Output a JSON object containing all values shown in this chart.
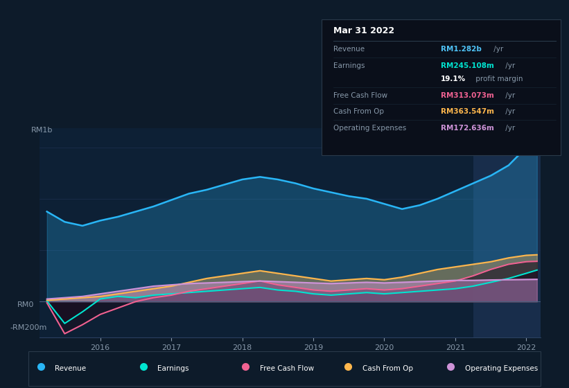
{
  "bg_color": "#0d1b2a",
  "chart_bg": "#0d2035",
  "title_date": "Mar 31 2022",
  "ylabel_top": "RM1b",
  "ylabel_zero": "RM0",
  "ylabel_neg": "-RM200m",
  "xlabel_ticks": [
    "2016",
    "2017",
    "2018",
    "2019",
    "2020",
    "2021",
    "2022"
  ],
  "ylim": [
    -280000000,
    1350000000
  ],
  "colors": {
    "revenue": "#29b6f6",
    "earnings": "#00e5d1",
    "free_cash_flow": "#f06292",
    "cash_from_op": "#ffb74d",
    "op_expenses": "#ce93d8"
  },
  "legend": [
    {
      "label": "Revenue",
      "color": "#29b6f6"
    },
    {
      "label": "Earnings",
      "color": "#00e5d1"
    },
    {
      "label": "Free Cash Flow",
      "color": "#f06292"
    },
    {
      "label": "Cash From Op",
      "color": "#ffb74d"
    },
    {
      "label": "Operating Expenses",
      "color": "#ce93d8"
    }
  ],
  "tooltip_rows": [
    {
      "label": "Revenue",
      "value": "RM1.282b",
      "unit": " /yr",
      "val_color": "#4fc3f7",
      "has_separator": true
    },
    {
      "label": "Earnings",
      "value": "RM245.108m",
      "unit": " /yr",
      "val_color": "#00e5d1",
      "has_separator": true
    },
    {
      "label": "",
      "value": "19.1%",
      "unit": " profit margin",
      "val_color": "white",
      "has_separator": false
    },
    {
      "label": "Free Cash Flow",
      "value": "RM313.073m",
      "unit": " /yr",
      "val_color": "#f06292",
      "has_separator": true
    },
    {
      "label": "Cash From Op",
      "value": "RM363.547m",
      "unit": " /yr",
      "val_color": "#ffb74d",
      "has_separator": true
    },
    {
      "label": "Operating Expenses",
      "value": "RM172.636m",
      "unit": " /yr",
      "val_color": "#ce93d8",
      "has_separator": true
    }
  ],
  "x": [
    2015.25,
    2015.5,
    2015.75,
    2016.0,
    2016.25,
    2016.5,
    2016.75,
    2017.0,
    2017.25,
    2017.5,
    2017.75,
    2018.0,
    2018.25,
    2018.5,
    2018.75,
    2019.0,
    2019.25,
    2019.5,
    2019.75,
    2020.0,
    2020.25,
    2020.5,
    2020.75,
    2021.0,
    2021.25,
    2021.5,
    2021.75,
    2022.0,
    2022.15
  ],
  "revenue": [
    700,
    620,
    590,
    630,
    660,
    700,
    740,
    790,
    840,
    870,
    910,
    950,
    970,
    950,
    920,
    880,
    850,
    820,
    800,
    760,
    720,
    750,
    800,
    860,
    920,
    980,
    1060,
    1200,
    1282
  ],
  "earnings": [
    5,
    -170,
    -80,
    20,
    40,
    30,
    50,
    60,
    70,
    80,
    90,
    100,
    110,
    90,
    80,
    60,
    50,
    60,
    70,
    60,
    70,
    80,
    90,
    100,
    120,
    150,
    180,
    220,
    245
  ],
  "free_cash_flow": [
    -10,
    -250,
    -180,
    -100,
    -50,
    0,
    30,
    50,
    80,
    100,
    120,
    140,
    160,
    130,
    110,
    90,
    80,
    90,
    100,
    90,
    100,
    120,
    140,
    160,
    200,
    250,
    290,
    310,
    313
  ],
  "cash_from_op": [
    10,
    20,
    30,
    40,
    60,
    80,
    100,
    120,
    150,
    180,
    200,
    220,
    240,
    220,
    200,
    180,
    160,
    170,
    180,
    170,
    190,
    220,
    250,
    270,
    290,
    310,
    340,
    360,
    364
  ],
  "op_expenses": [
    20,
    30,
    40,
    60,
    80,
    100,
    120,
    130,
    140,
    145,
    150,
    155,
    160,
    155,
    150,
    145,
    140,
    145,
    150,
    145,
    150,
    155,
    160,
    165,
    165,
    168,
    170,
    172,
    173
  ]
}
